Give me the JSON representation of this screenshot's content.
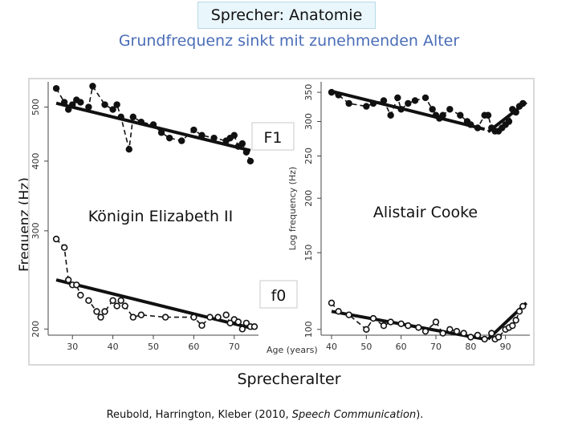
{
  "header": {
    "title": "Sprecher: Anatomie",
    "subtitle": "Grundfrequenz sinkt mit zunehmenden Alter",
    "y_axis_label": "Frequenz (Hz)",
    "x_axis_label": "Sprecheralter",
    "citation_prefix": "Reubold, Harrington, Kleber (2010, ",
    "citation_journal": "Speech Communication",
    "citation_suffix": ")."
  },
  "colors": {
    "panel_bg": "#ffffff",
    "frame": "#d9d9d9",
    "ink": "#111111",
    "title_bg": "#e9f6fb",
    "subtitle": "#4a6db7"
  },
  "chart_data": [
    {
      "type": "line",
      "speaker": "Königin Elizabeth II",
      "xlabel": "Age (years)",
      "ylabel": "",
      "log_y": true,
      "xlim": [
        24,
        76
      ],
      "ylim": [
        195,
        555
      ],
      "x_ticks": [
        30,
        40,
        50,
        60,
        70
      ],
      "y_ticks": [
        200,
        300,
        400,
        500
      ],
      "series": [
        {
          "name": "F1",
          "x": [
            26,
            28,
            29,
            30,
            31,
            32,
            34,
            35,
            38,
            40,
            41,
            42,
            44,
            45,
            47,
            50,
            52,
            54,
            57,
            60,
            62,
            65,
            68,
            69,
            70,
            71,
            72,
            73,
            74
          ],
          "y": [
            540,
            510,
            495,
            505,
            515,
            510,
            500,
            545,
            505,
            495,
            505,
            480,
            420,
            480,
            470,
            465,
            450,
            440,
            435,
            455,
            445,
            440,
            435,
            440,
            445,
            425,
            430,
            415,
            400
          ],
          "trend": [
            [
              26,
              508
            ],
            [
              74,
              418
            ]
          ]
        },
        {
          "name": "f0",
          "x": [
            26,
            28,
            29,
            30,
            31,
            32,
            34,
            36,
            37,
            38,
            40,
            41,
            42,
            43,
            45,
            47,
            53,
            60,
            62,
            64,
            66,
            68,
            69,
            70,
            71,
            72,
            73,
            74,
            75
          ],
          "y": [
            290,
            280,
            245,
            240,
            240,
            230,
            225,
            215,
            210,
            215,
            225,
            220,
            225,
            220,
            210,
            212,
            210,
            210,
            203,
            210,
            210,
            212,
            205,
            208,
            206,
            200,
            205,
            202,
            202
          ],
          "trend": [
            [
              26,
              245
            ],
            [
              74,
              201
            ]
          ]
        }
      ]
    },
    {
      "type": "line",
      "speaker": "Alistair Cooke",
      "xlabel": "",
      "ylabel": "Log frequency (Hz)",
      "log_y": true,
      "xlim": [
        37,
        97
      ],
      "ylim": [
        97,
        370
      ],
      "x_ticks": [
        40,
        50,
        60,
        70,
        80,
        90
      ],
      "y_ticks": [
        100,
        150,
        200,
        250,
        300,
        350
      ],
      "series": [
        {
          "name": "F1",
          "x": [
            40,
            42,
            45,
            50,
            52,
            55,
            57,
            59,
            60,
            62,
            64,
            67,
            69,
            70,
            71,
            72,
            74,
            77,
            79,
            80,
            82,
            84,
            85,
            86,
            87,
            88,
            89,
            90,
            91,
            92,
            93,
            94,
            95
          ],
          "y": [
            350,
            345,
            330,
            325,
            330,
            335,
            310,
            340,
            320,
            330,
            335,
            340,
            320,
            310,
            305,
            310,
            320,
            310,
            300,
            295,
            290,
            310,
            310,
            290,
            285,
            285,
            290,
            295,
            300,
            320,
            315,
            325,
            330
          ],
          "trend": [
            [
              40,
              352
            ],
            [
              84,
              288
            ]
          ],
          "trend2": [
            [
              85,
              284
            ],
            [
              96,
              332
            ]
          ]
        },
        {
          "name": "f0",
          "x": [
            40,
            42,
            45,
            50,
            52,
            55,
            57,
            60,
            62,
            65,
            67,
            70,
            72,
            74,
            76,
            78,
            80,
            82,
            84,
            86,
            87,
            88,
            90,
            91,
            92,
            93,
            94,
            95
          ],
          "y": [
            115,
            110,
            108,
            100,
            106,
            102,
            104,
            103,
            102,
            101,
            99,
            104,
            98,
            100,
            99,
            98,
            96,
            97,
            95,
            98,
            95,
            96,
            100,
            101,
            102,
            105,
            110,
            113
          ],
          "trend": [
            [
              40,
              110
            ],
            [
              84,
              95
            ]
          ],
          "trend2": [
            [
              85,
              95
            ],
            [
              96,
              115
            ]
          ]
        }
      ]
    }
  ],
  "annotations": {
    "f1_label": "F1",
    "f0_label": "f0",
    "speaker_left": "Königin Elizabeth II",
    "speaker_right": "Alistair Cooke",
    "x_axis_title_left": "Age (years)",
    "y_axis_title_right": "Log frequency (Hz)"
  }
}
